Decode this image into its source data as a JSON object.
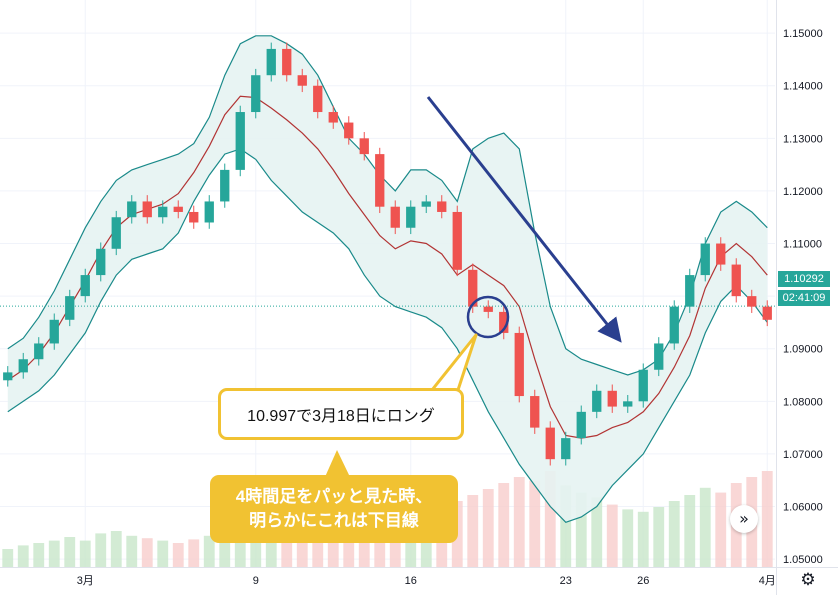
{
  "chart_data": {
    "type": "candlestick",
    "instrument_interval": "4H",
    "ylim": [
      1.0485,
      1.1563
    ],
    "y_ticks": [
      "1.15000",
      "1.14000",
      "1.13000",
      "1.12000",
      "1.11000",
      "1.10000",
      "1.09000",
      "1.08000",
      "1.07000",
      "1.06000",
      "1.05000"
    ],
    "x_ticks": [
      {
        "label": "3月",
        "index": 5
      },
      {
        "label": "9",
        "index": 16
      },
      {
        "label": "16",
        "index": 26
      },
      {
        "label": "23",
        "index": 36
      },
      {
        "label": "26",
        "index": 41
      },
      {
        "label": "4月",
        "index": 49
      }
    ],
    "closes": [
      1.0855,
      1.088,
      1.091,
      1.0955,
      1.1,
      1.104,
      1.109,
      1.115,
      1.118,
      1.115,
      1.117,
      1.116,
      1.114,
      1.118,
      1.124,
      1.135,
      1.142,
      1.147,
      1.142,
      1.14,
      1.135,
      1.133,
      1.13,
      1.127,
      1.117,
      1.113,
      1.117,
      1.118,
      1.116,
      1.105,
      1.098,
      1.097,
      1.093,
      1.081,
      1.075,
      1.069,
      1.073,
      1.078,
      1.082,
      1.079,
      1.08,
      1.086,
      1.091,
      1.098,
      1.104,
      1.11,
      1.106,
      1.1,
      1.098,
      1.0955
    ],
    "upper_band": [
      1.09,
      1.092,
      1.096,
      1.101,
      1.107,
      1.113,
      1.118,
      1.122,
      1.124,
      1.125,
      1.126,
      1.127,
      1.129,
      1.134,
      1.142,
      1.148,
      1.1495,
      1.1495,
      1.148,
      1.146,
      1.142,
      1.136,
      1.13,
      1.127,
      1.123,
      1.12,
      1.124,
      1.124,
      1.122,
      1.118,
      1.128,
      1.13,
      1.131,
      1.128,
      1.112,
      1.098,
      1.09,
      1.088,
      1.087,
      1.086,
      1.085,
      1.086,
      1.088,
      1.093,
      1.1,
      1.11,
      1.116,
      1.118,
      1.116,
      1.113
    ],
    "lower_band": [
      1.078,
      1.08,
      1.082,
      1.085,
      1.089,
      1.093,
      1.099,
      1.104,
      1.107,
      1.108,
      1.109,
      1.112,
      1.118,
      1.123,
      1.127,
      1.128,
      1.126,
      1.122,
      1.119,
      1.116,
      1.114,
      1.112,
      1.109,
      1.104,
      1.1,
      1.098,
      1.097,
      1.096,
      1.094,
      1.09,
      1.084,
      1.078,
      1.073,
      1.068,
      1.064,
      1.06,
      1.057,
      1.058,
      1.06,
      1.064,
      1.067,
      1.07,
      1.075,
      1.08,
      1.085,
      1.093,
      1.099,
      1.102,
      1.099,
      1.095
    ],
    "volumes": [
      0.15,
      0.18,
      0.2,
      0.22,
      0.25,
      0.22,
      0.28,
      0.3,
      0.26,
      0.24,
      0.22,
      0.2,
      0.23,
      0.26,
      0.3,
      0.34,
      0.38,
      0.4,
      0.32,
      0.28,
      0.3,
      0.34,
      0.36,
      0.38,
      0.42,
      0.46,
      0.48,
      0.5,
      0.52,
      0.55,
      0.6,
      0.65,
      0.7,
      0.75,
      0.72,
      0.8,
      0.68,
      0.62,
      0.58,
      0.52,
      0.48,
      0.46,
      0.5,
      0.55,
      0.6,
      0.66,
      0.62,
      0.7,
      0.75,
      0.8
    ],
    "last_price": "1.10292",
    "countdown": "02:41:09",
    "current_price_line": 1.0981,
    "colors": {
      "up": "#26a69a",
      "down": "#ef5350",
      "band": "#1a8a8a",
      "band_fill": "#e6f3f2",
      "basis": "#b23434",
      "arrow": "#2a3f8f",
      "circle": "#2a3f8f",
      "callout": "#f1c232"
    }
  },
  "annotations": {
    "entry_callout": "10.997で3月18日にロング",
    "judgement_line1": "4時間足をパッと見た時、",
    "judgement_line2": "明らかにこれは下目線"
  },
  "icons": {
    "gear": "⚙",
    "scroll_right": "»"
  }
}
